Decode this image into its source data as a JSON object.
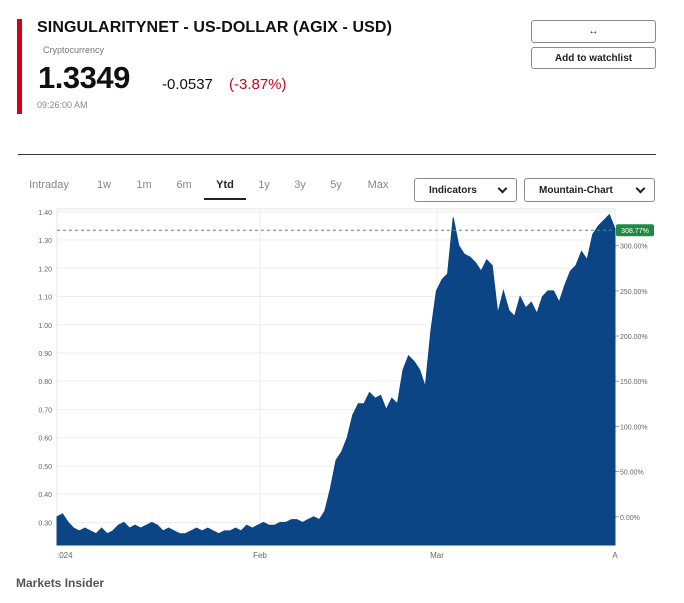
{
  "header": {
    "title": "SINGULARITYNET - US-DOLLAR (AGIX - USD)",
    "subtitle": "Cryptocurrency",
    "price": "1.3349",
    "change": "-0.0537",
    "change_pct": "(-3.87%)",
    "time": "09:26:00 AM"
  },
  "actions": {
    "swap_label": "↔",
    "watchlist_label": "Add to watchlist"
  },
  "tabs": [
    {
      "label": "Intraday"
    },
    {
      "label": "1w"
    },
    {
      "label": "1m"
    },
    {
      "label": "6m"
    },
    {
      "label": "Ytd",
      "active": true
    },
    {
      "label": "1y"
    },
    {
      "label": "3y"
    },
    {
      "label": "5y"
    },
    {
      "label": "Max"
    }
  ],
  "controls": {
    "indicators_label": "Indicators",
    "chart_type_label": "Mountain-Chart"
  },
  "colors": {
    "accent_red": "#d0021b",
    "area_fill": "#0b4585",
    "badge_green": "#1f8a43"
  },
  "footer": {
    "brand": "Markets Insider"
  },
  "chart_data": {
    "type": "area",
    "x_ticks": [
      ":024",
      "Feb",
      "Mar",
      "A"
    ],
    "y_left_ticks": [
      "1.40",
      "1.30",
      "1.20",
      "1.10",
      "1.00",
      "0.90",
      "0.80",
      "0.70",
      "0.60",
      "0.50",
      "0.40",
      "0.30"
    ],
    "y_right_ticks": [
      "300.00%",
      "250.00%",
      "200.00%",
      "150.00%",
      "100.00%",
      "50.00%",
      "0.00%"
    ],
    "ylim": [
      0.22,
      1.41
    ],
    "current_value": 1.3349,
    "current_badge": "308.77%",
    "grid": true,
    "series": [
      {
        "x": [
          0,
          1,
          2,
          3,
          4,
          5,
          6,
          7,
          8,
          9,
          10,
          11,
          12,
          13,
          14,
          15,
          16,
          17,
          18,
          19,
          20,
          21,
          22,
          23,
          24,
          25,
          26,
          27,
          28,
          29,
          30,
          31,
          32,
          33,
          34,
          35,
          36,
          37,
          38,
          39,
          40,
          41,
          42,
          43,
          44,
          45,
          46,
          47,
          48,
          49,
          50,
          51,
          52,
          53,
          54,
          55,
          56,
          57,
          58,
          59,
          60,
          61,
          62,
          63,
          64,
          65,
          66,
          67,
          68,
          69,
          70,
          71,
          72,
          73,
          74,
          75,
          76,
          77,
          78,
          79,
          80,
          81,
          82,
          83,
          84,
          85,
          86,
          87,
          88,
          89,
          90,
          91,
          92,
          93,
          94,
          95,
          96,
          97,
          98,
          99,
          100
        ],
        "values": [
          0.32,
          0.33,
          0.3,
          0.28,
          0.27,
          0.28,
          0.27,
          0.26,
          0.28,
          0.26,
          0.27,
          0.29,
          0.3,
          0.28,
          0.29,
          0.28,
          0.29,
          0.3,
          0.29,
          0.27,
          0.28,
          0.27,
          0.26,
          0.26,
          0.27,
          0.28,
          0.27,
          0.28,
          0.27,
          0.26,
          0.27,
          0.27,
          0.28,
          0.27,
          0.29,
          0.28,
          0.29,
          0.3,
          0.29,
          0.29,
          0.3,
          0.3,
          0.31,
          0.31,
          0.3,
          0.31,
          0.32,
          0.31,
          0.34,
          0.42,
          0.52,
          0.55,
          0.6,
          0.68,
          0.72,
          0.72,
          0.76,
          0.74,
          0.75,
          0.7,
          0.74,
          0.72,
          0.84,
          0.89,
          0.87,
          0.84,
          0.78,
          0.98,
          1.12,
          1.16,
          1.18,
          1.38,
          1.28,
          1.25,
          1.24,
          1.22,
          1.19,
          1.23,
          1.21,
          1.04,
          1.12,
          1.05,
          1.03,
          1.1,
          1.06,
          1.08,
          1.04,
          1.1,
          1.12,
          1.12,
          1.08,
          1.14,
          1.19,
          1.21,
          1.26,
          1.23,
          1.32,
          1.35,
          1.37,
          1.39,
          1.34
        ]
      }
    ]
  }
}
